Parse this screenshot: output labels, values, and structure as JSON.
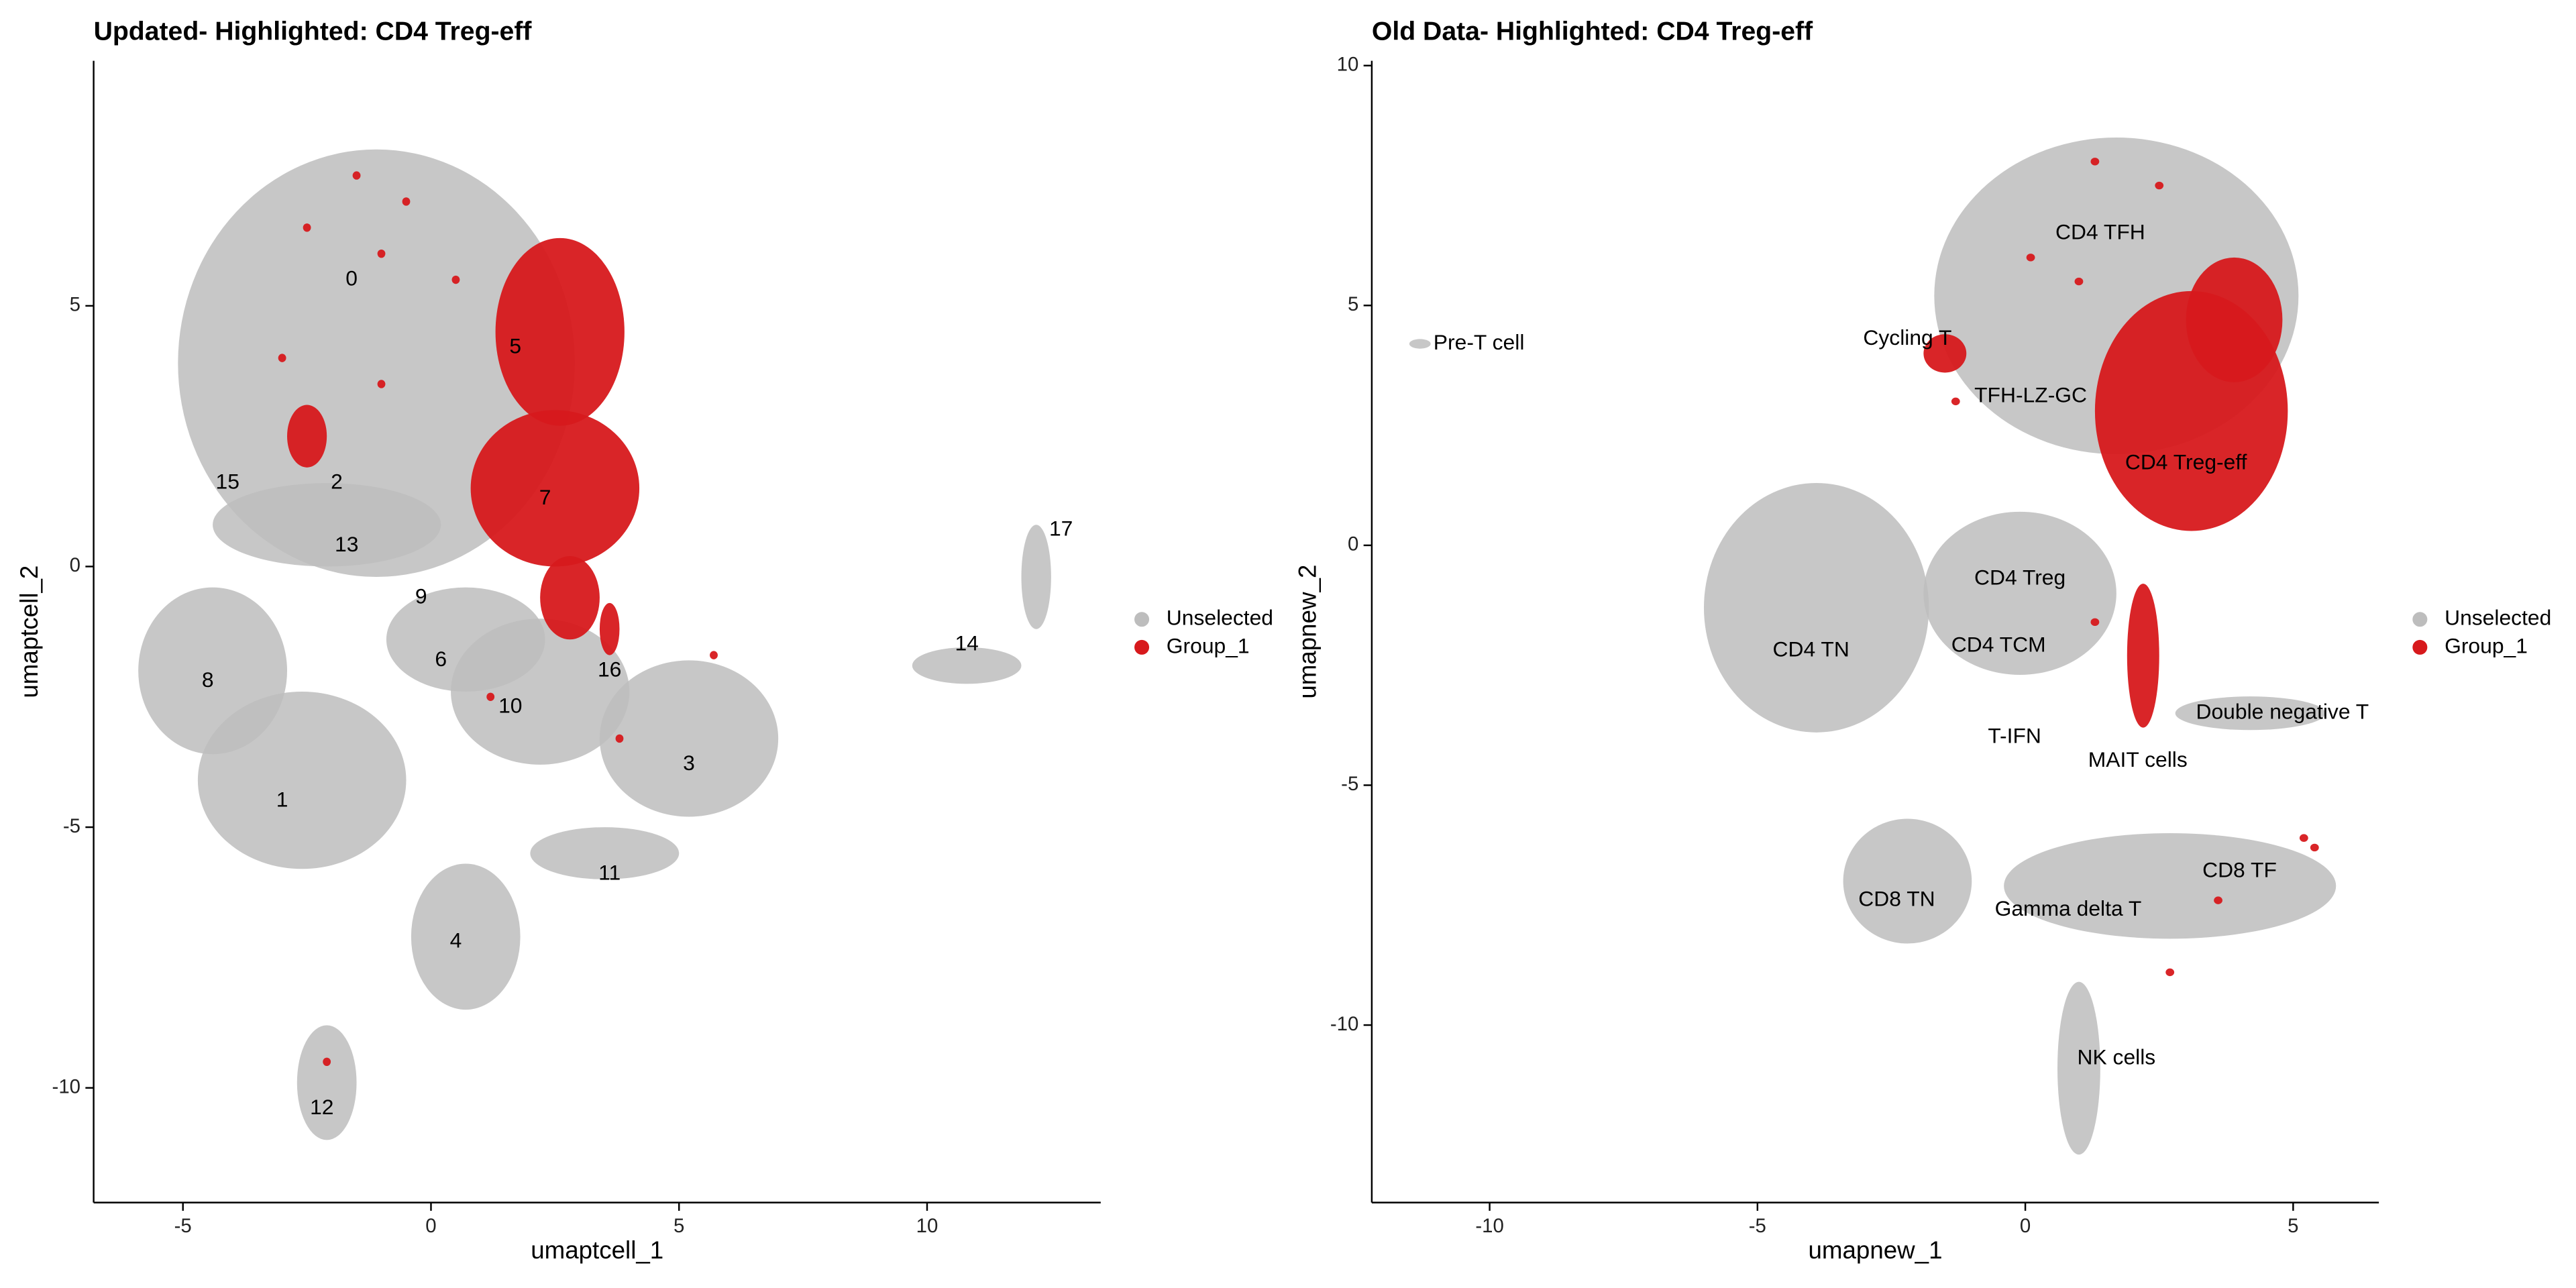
{
  "chart_data": [
    {
      "type": "scatter",
      "title": "Updated- Highlighted: CD4 Treg-eff",
      "xlabel": "umaptcell_1",
      "ylabel": "umaptcell_2",
      "xlim": [
        -6.8,
        13.5
      ],
      "ylim": [
        -12.2,
        9.7
      ],
      "xticks": [
        -5,
        0,
        5,
        10
      ],
      "yticks": [
        -10,
        -5,
        0,
        5
      ],
      "legend": "right",
      "series": [
        {
          "name": "Unselected",
          "color": "#bdbdbd",
          "x": [
            -1.1,
            -2.1,
            -4.4,
            -2.6,
            0.7,
            2.2,
            5.2,
            3.5,
            0.7,
            -2.1,
            10.8,
            12.2
          ],
          "y": [
            3.9,
            0.8,
            -2.0,
            -4.1,
            -1.4,
            -2.4,
            -3.3,
            -5.5,
            -7.1,
            -9.9,
            -1.9,
            -0.2
          ],
          "rx": [
            4.0,
            2.3,
            1.5,
            2.1,
            1.6,
            1.8,
            1.8,
            1.5,
            1.1,
            0.6,
            1.1,
            0.3
          ],
          "ry": [
            4.1,
            0.8,
            1.6,
            1.7,
            1.0,
            1.4,
            1.5,
            0.5,
            1.4,
            1.1,
            0.35,
            1.0
          ]
        },
        {
          "name": "Group_1",
          "color": "#d7191c",
          "x": [
            2.6,
            2.5,
            2.8,
            -2.5,
            -1.5,
            -2.5,
            -1,
            -3,
            -1,
            0.5,
            -0.5,
            1.2,
            3.8,
            5.7,
            -2.1,
            3.6
          ],
          "y": [
            4.5,
            1.5,
            -0.6,
            2.5,
            7.5,
            6.5,
            6,
            4,
            3.5,
            5.5,
            7,
            -2.5,
            -3.3,
            -1.7,
            -9.5,
            -1.2
          ],
          "rx": [
            1.3,
            1.7,
            0.6,
            0.4,
            0.08,
            0.08,
            0.08,
            0.08,
            0.08,
            0.08,
            0.08,
            0.08,
            0.08,
            0.08,
            0.08,
            0.2
          ],
          "ry": [
            1.8,
            1.5,
            0.8,
            0.6,
            0.08,
            0.08,
            0.08,
            0.08,
            0.08,
            0.08,
            0.08,
            0.08,
            0.08,
            0.08,
            0.08,
            0.5
          ]
        }
      ],
      "annotations": {
        "labels": [
          "0",
          "5",
          "15",
          "2",
          "7",
          "13",
          "17",
          "9",
          "14",
          "8",
          "6",
          "16",
          "10",
          "3",
          "1",
          "11",
          "4",
          "12"
        ],
        "x": [
          -1.6,
          1.7,
          -4.1,
          -1.9,
          2.3,
          -1.7,
          12.7,
          -0.2,
          10.8,
          -4.5,
          0.2,
          3.6,
          1.6,
          5.2,
          -3.0,
          3.6,
          0.5,
          -2.2
        ],
        "y": [
          5.5,
          4.2,
          1.6,
          1.6,
          1.3,
          0.4,
          0.7,
          -0.6,
          -1.5,
          -2.2,
          -1.8,
          -2.0,
          -2.7,
          -3.8,
          -4.5,
          -5.9,
          -7.2,
          -10.4
        ]
      }
    },
    {
      "type": "scatter",
      "title": "Old Data- Highlighted: CD4 Treg-eff",
      "xlabel": "umapnew_1",
      "ylabel": "umapnew_2",
      "xlim": [
        -12.2,
        6.6
      ],
      "ylim": [
        -13.7,
        10.1
      ],
      "xticks": [
        -10,
        -5,
        0,
        5
      ],
      "yticks": [
        -10,
        -5,
        0,
        5,
        10
      ],
      "legend": "right",
      "series": [
        {
          "name": "Unselected",
          "color": "#bdbdbd",
          "x": [
            1.7,
            -3.9,
            -0.1,
            -2.2,
            2.7,
            1.0,
            4.2,
            -11.3
          ],
          "y": [
            5.2,
            -1.3,
            -1.0,
            -7.0,
            -7.1,
            -10.9,
            -3.5,
            4.2
          ],
          "rx": [
            3.4,
            2.1,
            1.8,
            1.2,
            3.1,
            0.4,
            1.4,
            0.2
          ],
          "ry": [
            3.3,
            2.6,
            1.7,
            1.3,
            1.1,
            1.8,
            0.35,
            0.1
          ]
        },
        {
          "name": "Group_1",
          "color": "#d7191c",
          "x": [
            3.1,
            3.9,
            2.2,
            -1.5,
            1.3,
            2.5,
            0.1,
            1.0,
            5.2,
            3.6,
            2.7,
            5.4,
            -1.3,
            1.3
          ],
          "y": [
            2.8,
            4.7,
            -2.3,
            4.0,
            8.0,
            7.5,
            6.0,
            5.5,
            -6.1,
            -7.4,
            -8.9,
            -6.3,
            3.0,
            -1.6
          ],
          "rx": [
            1.8,
            0.9,
            0.3,
            0.4,
            0.08,
            0.08,
            0.08,
            0.08,
            0.08,
            0.08,
            0.08,
            0.08,
            0.08,
            0.08
          ],
          "ry": [
            2.5,
            1.3,
            1.5,
            0.4,
            0.08,
            0.08,
            0.08,
            0.08,
            0.08,
            0.08,
            0.08,
            0.08,
            0.08,
            0.08
          ]
        }
      ],
      "annotations": {
        "labels": [
          "CD4 TFH",
          "Pre-T cell",
          "Cycling T",
          "TFH-LZ-GC",
          "CD4 Treg-eff",
          "CD4 Treg",
          "CD4 TN",
          "CD4 TCM",
          "Double negative T",
          "T-IFN",
          "MAIT cells",
          "CD8 TF",
          "CD8 TN",
          "Gamma delta T",
          "NK cells"
        ],
        "x": [
          1.4,
          -10.2,
          -2.2,
          0.1,
          3.0,
          -0.1,
          -4.0,
          -0.5,
          4.8,
          -0.2,
          2.1,
          4.0,
          -2.4,
          0.8,
          1.7
        ],
        "y": [
          6.5,
          4.2,
          4.3,
          3.1,
          1.7,
          -0.7,
          -2.2,
          -2.1,
          -3.5,
          -4.0,
          -4.5,
          -6.8,
          -7.4,
          -7.6,
          -10.7
        ]
      }
    }
  ]
}
